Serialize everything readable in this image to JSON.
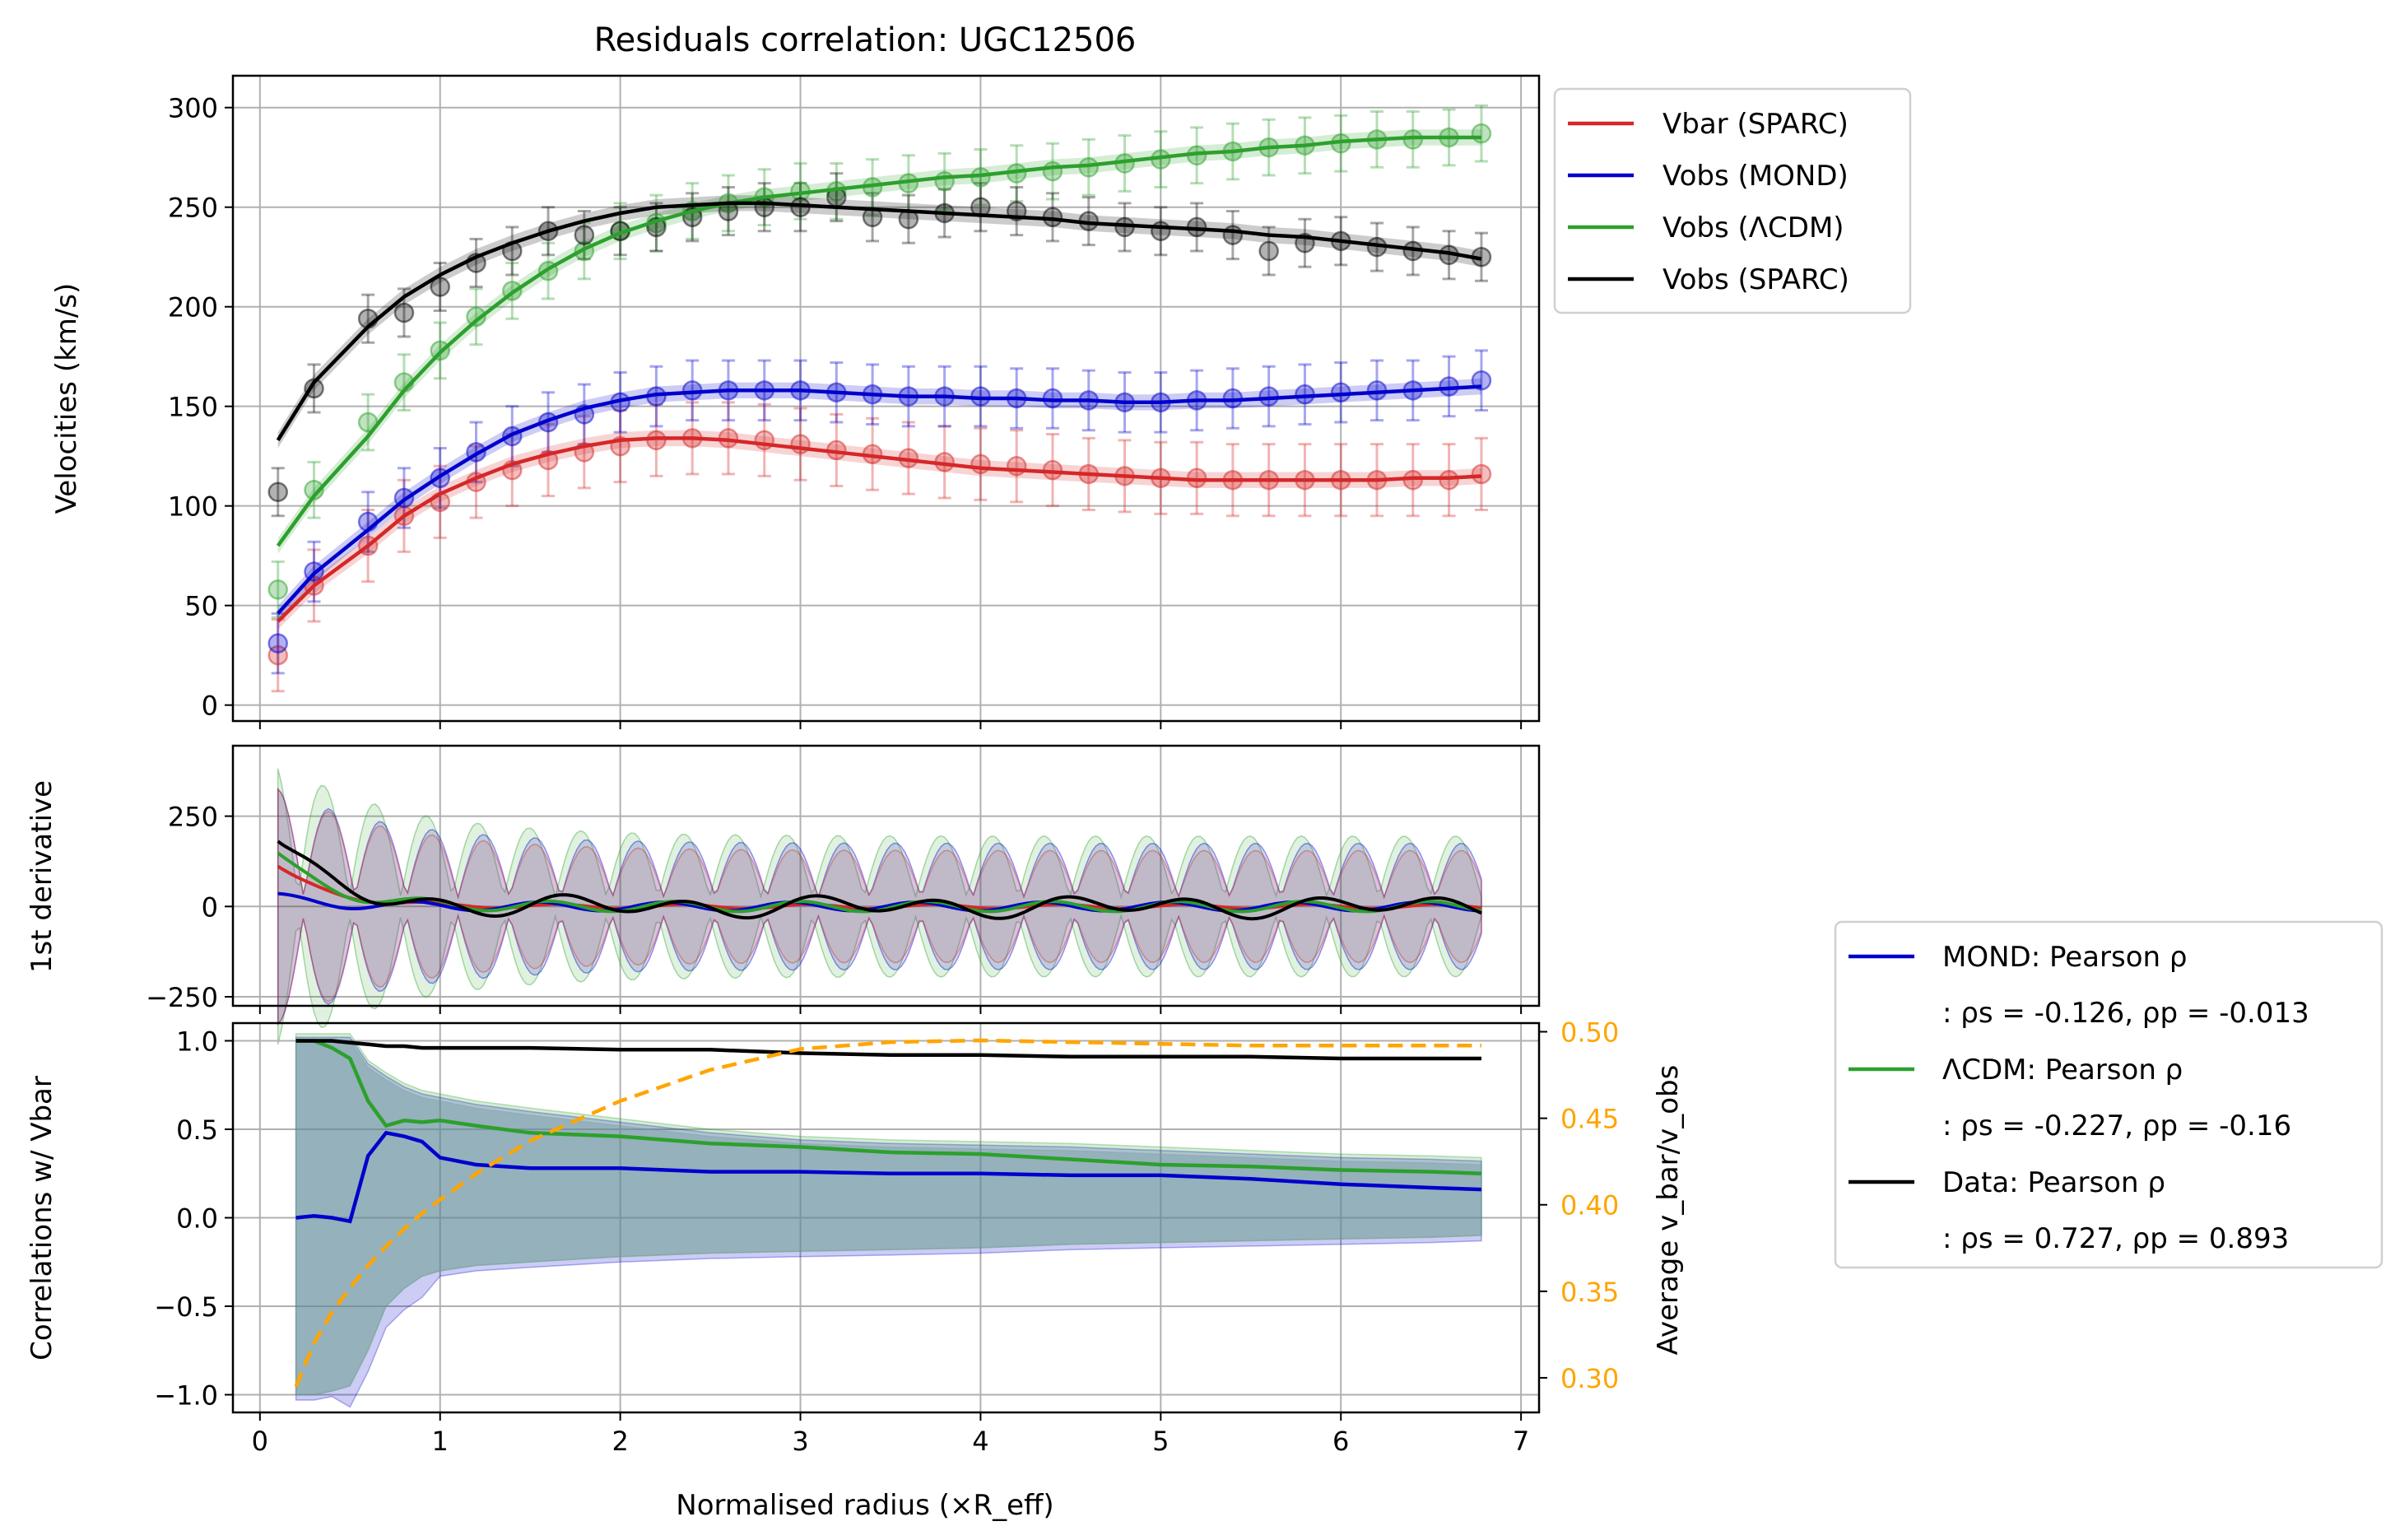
{
  "chart_data": {
    "type": "line",
    "title": "Residuals correlation: UGC12506",
    "xlabel": "Normalised radius (×R_eff)",
    "xlim": [
      -0.15,
      7.1
    ],
    "x_ticks": [
      "0",
      "1",
      "2",
      "3",
      "4",
      "5",
      "6",
      "7"
    ],
    "colors": {
      "vbar": "#d62728",
      "mond": "#0000cd",
      "lcdm": "#2ca02c",
      "data": "#000000",
      "avg": "#ffa500"
    },
    "velocities": {
      "ylabel": "Velocities (km/s)",
      "ylim": [
        -8,
        316
      ],
      "y_ticks": [
        "0",
        "50",
        "100",
        "150",
        "200",
        "250",
        "300"
      ],
      "x": [
        0.1,
        0.3,
        0.6,
        0.8,
        1.0,
        1.2,
        1.4,
        1.6,
        1.8,
        2.0,
        2.2,
        2.4,
        2.6,
        2.8,
        3.0,
        3.2,
        3.4,
        3.6,
        3.8,
        4.0,
        4.2,
        4.4,
        4.6,
        4.8,
        5.0,
        5.2,
        5.4,
        5.6,
        5.8,
        6.0,
        6.2,
        6.4,
        6.6,
        6.78
      ],
      "series": [
        {
          "name": "Vbar (SPARC)",
          "key": "vbar",
          "points": [
            25,
            60,
            80,
            95,
            102,
            112,
            118,
            123,
            127,
            130,
            133,
            134,
            134,
            133,
            131,
            128,
            126,
            124,
            122,
            121,
            120,
            118,
            116,
            115,
            114,
            114,
            113,
            113,
            113,
            113,
            113,
            113,
            113,
            116
          ],
          "curve": [
            42,
            60,
            80,
            95,
            106,
            114,
            121,
            126,
            130,
            133,
            134,
            134,
            133,
            131,
            129,
            127,
            125,
            123,
            121,
            119,
            118,
            117,
            116,
            115,
            114,
            113,
            113,
            113,
            113,
            113,
            113,
            114,
            114,
            115
          ],
          "err": 18
        },
        {
          "name": "Vobs (MOND)",
          "key": "mond",
          "points": [
            31,
            67,
            92,
            104,
            114,
            127,
            135,
            142,
            146,
            152,
            155,
            158,
            158,
            158,
            158,
            157,
            156,
            155,
            155,
            155,
            154,
            154,
            153,
            152,
            152,
            153,
            154,
            155,
            156,
            157,
            158,
            158,
            160,
            163
          ],
          "curve": [
            46,
            66,
            88,
            103,
            115,
            126,
            136,
            143,
            149,
            153,
            156,
            157,
            158,
            158,
            158,
            157,
            156,
            155,
            155,
            154,
            154,
            153,
            153,
            152,
            152,
            153,
            153,
            154,
            155,
            156,
            157,
            158,
            159,
            160
          ],
          "err": 15
        },
        {
          "name": "Vobs (ΛCDM)",
          "key": "lcdm",
          "points": [
            58,
            108,
            142,
            162,
            178,
            195,
            208,
            218,
            228,
            238,
            242,
            248,
            252,
            255,
            258,
            258,
            260,
            262,
            263,
            265,
            267,
            268,
            270,
            272,
            274,
            276,
            278,
            280,
            281,
            282,
            284,
            284,
            285,
            287
          ],
          "curve": [
            80,
            105,
            135,
            158,
            177,
            193,
            207,
            219,
            229,
            237,
            243,
            248,
            252,
            255,
            257,
            259,
            261,
            263,
            265,
            266,
            268,
            270,
            271,
            273,
            275,
            277,
            278,
            280,
            281,
            283,
            284,
            285,
            285,
            285
          ],
          "err": 14
        },
        {
          "name": "Vobs (SPARC)",
          "key": "data",
          "points": [
            107,
            159,
            194,
            197,
            210,
            222,
            228,
            238,
            236,
            238,
            240,
            245,
            248,
            250,
            250,
            255,
            245,
            244,
            247,
            250,
            248,
            245,
            243,
            240,
            238,
            240,
            236,
            228,
            232,
            233,
            230,
            228,
            226,
            225
          ],
          "curve": [
            133,
            162,
            190,
            205,
            216,
            225,
            232,
            238,
            243,
            247,
            250,
            251,
            252,
            252,
            251,
            250,
            249,
            248,
            247,
            246,
            245,
            244,
            242,
            241,
            240,
            239,
            238,
            236,
            235,
            233,
            231,
            229,
            227,
            224
          ],
          "err": 12
        }
      ]
    },
    "derivative": {
      "ylabel": "1st derivative",
      "ylim": [
        -275,
        445
      ],
      "y_ticks": [
        "250",
        "0",
        "−250"
      ]
    },
    "correlation": {
      "ylabel": "Correlations w/ Vbar",
      "ylim": [
        -1.1,
        1.1
      ],
      "y_ticks": [
        "1.0",
        "0.5",
        "0.0",
        "−0.5",
        "−1.0"
      ],
      "y2label": "Average v_bar/v_obs",
      "y2lim": [
        0.28,
        0.505
      ],
      "y2_ticks": [
        "0.50",
        "0.45",
        "0.40",
        "0.35",
        "0.30"
      ],
      "x": [
        0.2,
        0.3,
        0.4,
        0.5,
        0.6,
        0.7,
        0.8,
        0.9,
        1.0,
        1.2,
        1.5,
        2.0,
        2.5,
        3.0,
        3.5,
        4.0,
        4.5,
        5.0,
        5.5,
        6.0,
        6.5,
        6.78
      ],
      "mond": [
        0.0,
        0.01,
        0.0,
        -0.02,
        0.35,
        0.48,
        0.46,
        0.43,
        0.34,
        0.3,
        0.28,
        0.28,
        0.26,
        0.26,
        0.25,
        0.25,
        0.24,
        0.24,
        0.22,
        0.19,
        0.17,
        0.16
      ],
      "lcdm": [
        1.0,
        1.0,
        0.96,
        0.9,
        0.66,
        0.52,
        0.55,
        0.54,
        0.55,
        0.52,
        0.48,
        0.46,
        0.42,
        0.4,
        0.37,
        0.36,
        0.33,
        0.3,
        0.29,
        0.27,
        0.26,
        0.25
      ],
      "data": [
        1.0,
        1.0,
        1.0,
        0.99,
        0.98,
        0.97,
        0.97,
        0.96,
        0.96,
        0.96,
        0.96,
        0.95,
        0.95,
        0.93,
        0.92,
        0.92,
        0.91,
        0.91,
        0.91,
        0.9,
        0.9,
        0.9
      ],
      "avg_vbar_vobs": [
        0.295,
        0.32,
        0.338,
        0.352,
        0.365,
        0.376,
        0.386,
        0.395,
        0.403,
        0.418,
        0.437,
        0.46,
        0.478,
        0.49,
        0.494,
        0.495,
        0.494,
        0.493,
        0.492,
        0.492,
        0.492,
        0.492
      ],
      "band_low": [
        -1.0,
        -1.0,
        -0.98,
        -0.95,
        -0.75,
        -0.5,
        -0.4,
        -0.33,
        -0.3,
        -0.27,
        -0.25,
        -0.22,
        -0.2,
        -0.19,
        -0.18,
        -0.17,
        -0.15,
        -0.14,
        -0.13,
        -0.12,
        -0.11,
        -0.1
      ],
      "band_high": [
        1.0,
        1.0,
        1.0,
        1.0,
        0.85,
        0.78,
        0.72,
        0.68,
        0.66,
        0.62,
        0.58,
        0.52,
        0.46,
        0.42,
        0.4,
        0.39,
        0.38,
        0.36,
        0.34,
        0.32,
        0.31,
        0.3
      ]
    },
    "legend_main": {
      "placement": "outside-top-right",
      "entries": [
        "Vbar (SPARC)",
        "Vobs (MOND)",
        "Vobs (ΛCDM)",
        "Vobs (SPARC)"
      ]
    },
    "legend_corr": {
      "placement": "outside-right",
      "entries": [
        {
          "key": "mond",
          "label": "MOND: Pearson ρ",
          "stats": ": ρs = -0.126, ρp = -0.013"
        },
        {
          "key": "lcdm",
          "label": "ΛCDM: Pearson ρ",
          "stats": ": ρs = -0.227, ρp = -0.16"
        },
        {
          "key": "data",
          "label": "Data: Pearson ρ",
          "stats": ": ρs = 0.727, ρp = 0.893"
        }
      ]
    }
  }
}
